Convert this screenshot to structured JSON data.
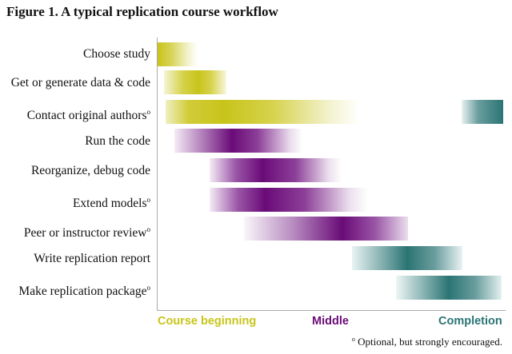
{
  "title": "Figure 1. A typical replication course workflow",
  "tasks": [
    {
      "label": "Choose study",
      "optional": false
    },
    {
      "label": "Get or generate data & code",
      "optional": false
    },
    {
      "label": "Contact original authors",
      "optional": true
    },
    {
      "label": "Run the code",
      "optional": false
    },
    {
      "label": "Reorganize, debug code",
      "optional": false
    },
    {
      "label": "Extend models",
      "optional": true
    },
    {
      "label": "Peer or instructor review",
      "optional": true
    },
    {
      "label": "Write replication report",
      "optional": false
    },
    {
      "label": "Make replication package",
      "optional": true
    }
  ],
  "optional_marker": "o",
  "phases": {
    "beginning": "Course beginning",
    "middle": "Middle",
    "completion": "Completion"
  },
  "footnote_marker": "o",
  "footnote": " Optional, but strongly encouraged.",
  "colors": {
    "beginning": "#c8c41a",
    "middle": "#6a0b78",
    "completion": "#2b7474"
  }
}
